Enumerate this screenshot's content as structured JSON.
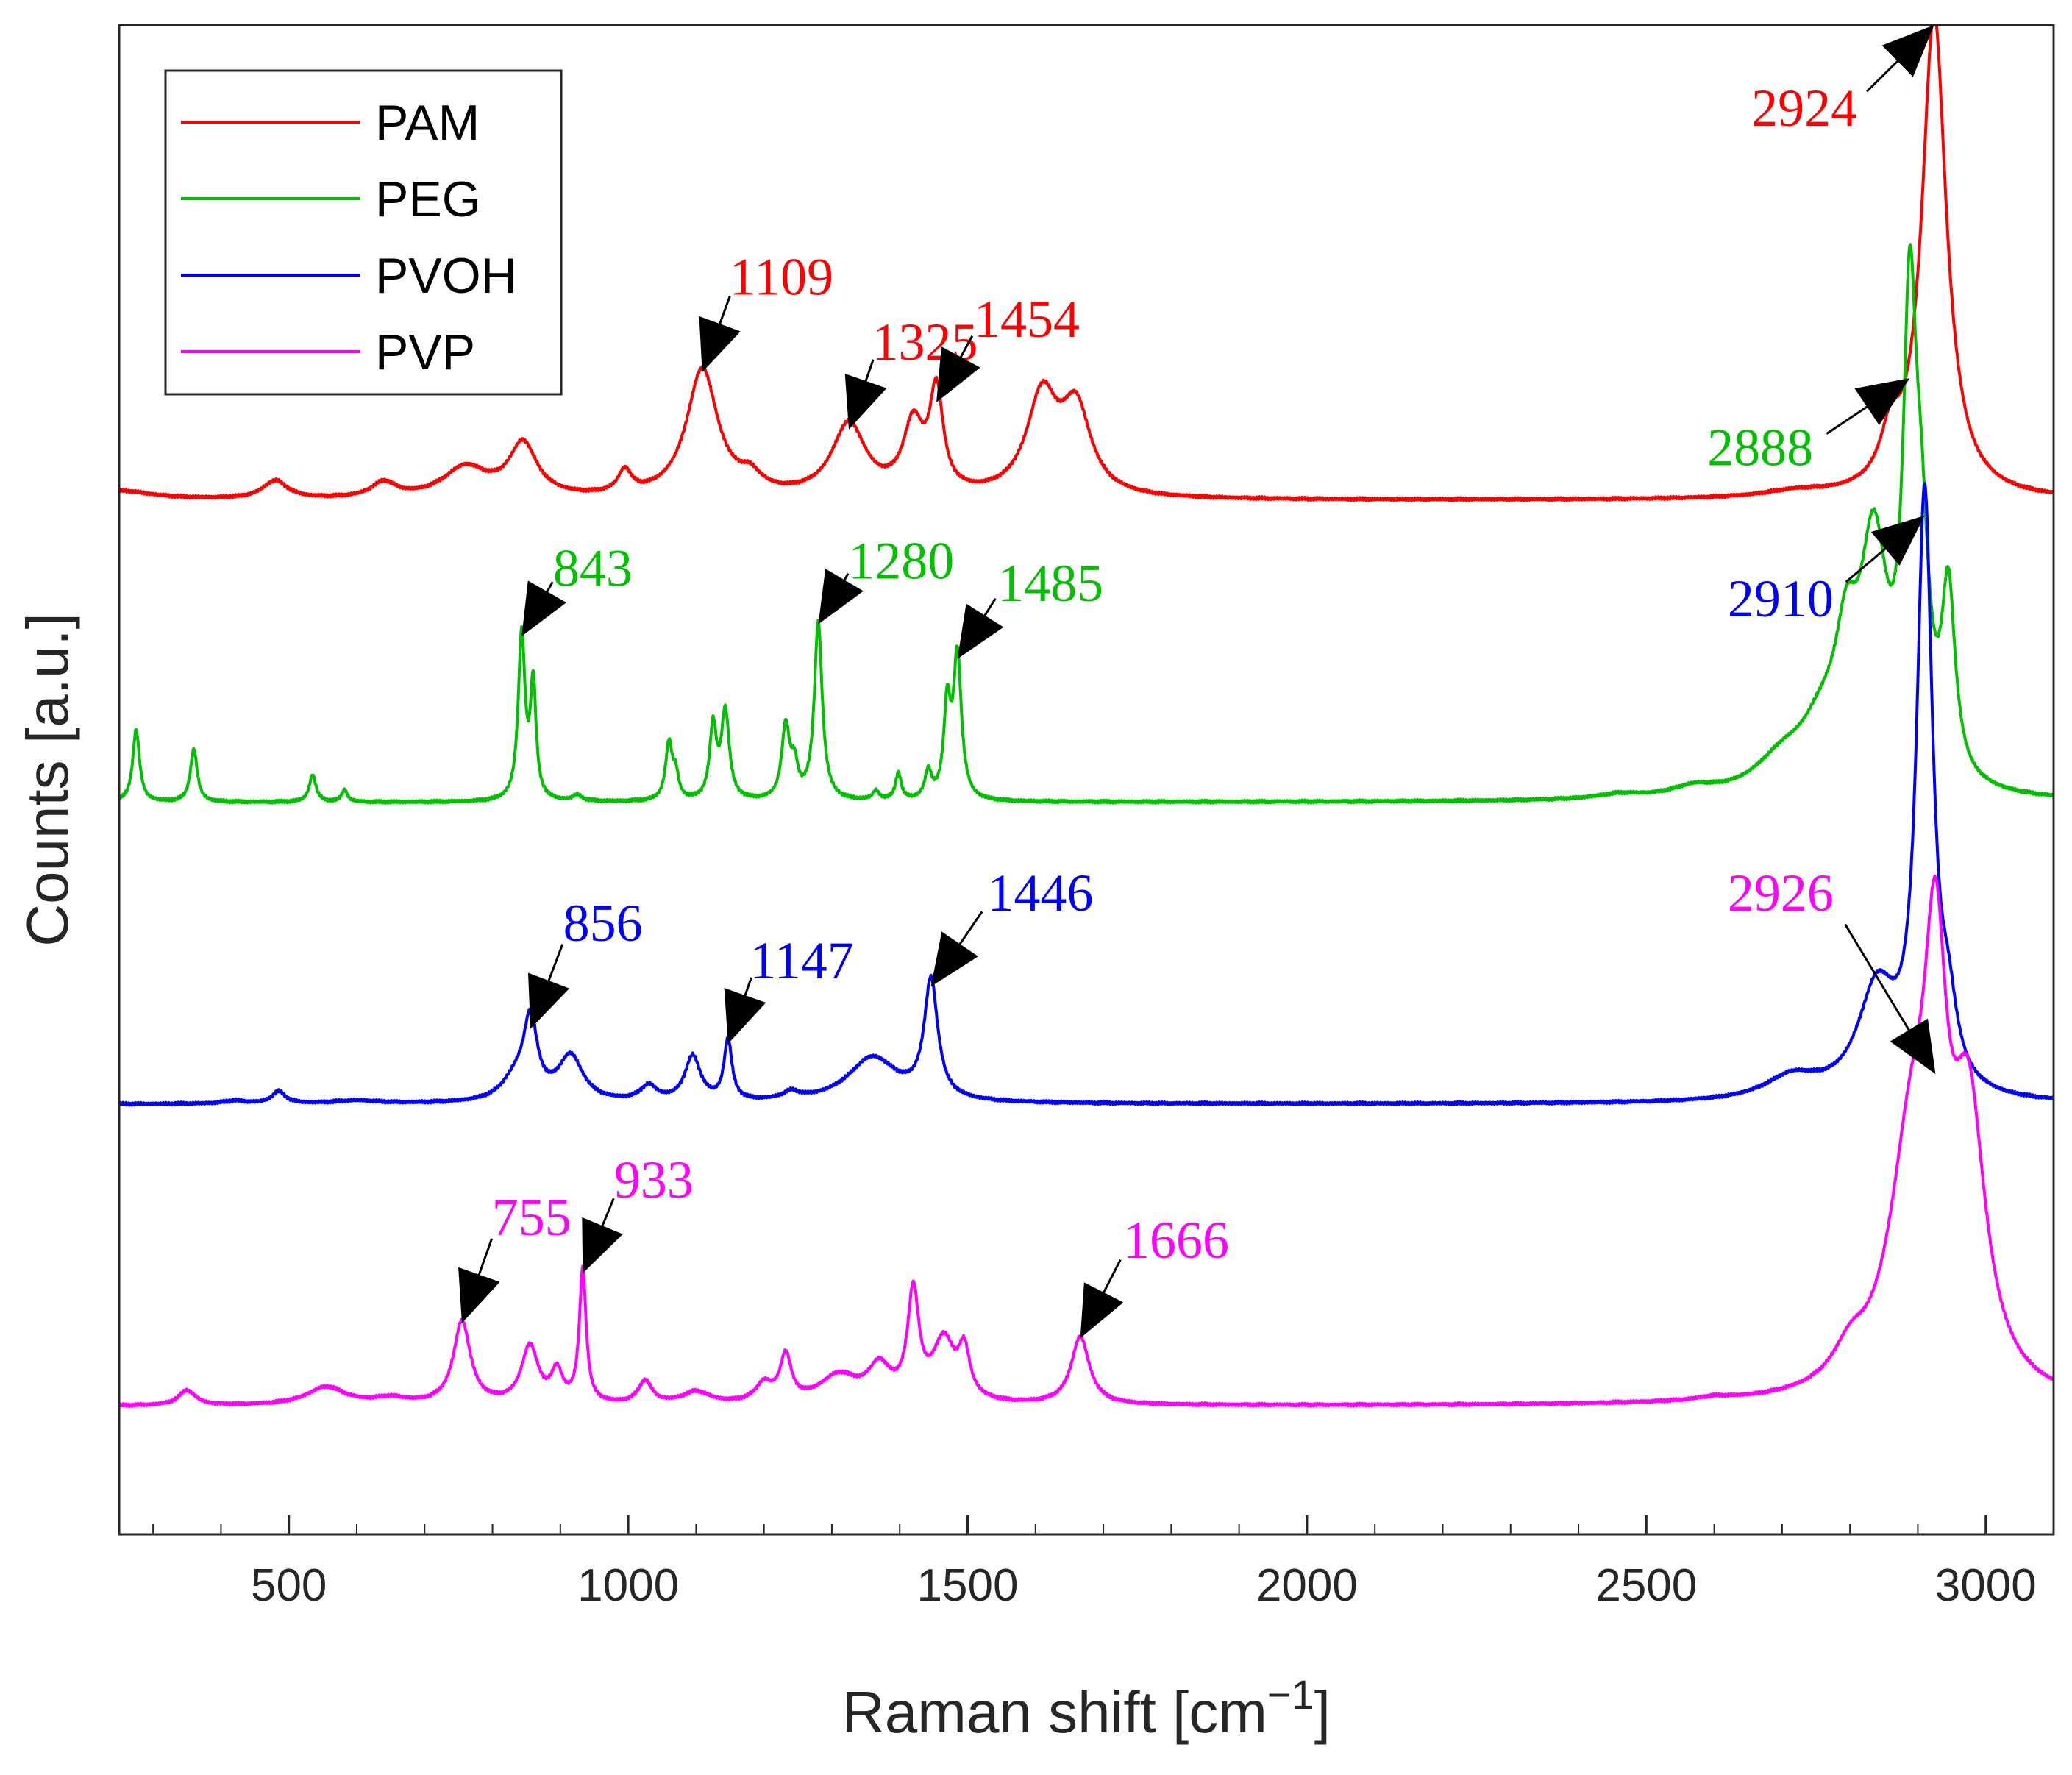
{
  "chart_data": {
    "type": "line",
    "xlabel": "Raman shift [cm",
    "xlabel_sup": "−1",
    "xlabel_close": "]",
    "ylabel": "Counts [a.u.]",
    "xlim": [
      250,
      3100
    ],
    "ylim": [
      0,
      10
    ],
    "x_ticks": [
      500,
      1000,
      1500,
      2000,
      2500,
      3000
    ],
    "x_tick_labels": [
      "500",
      "1000",
      "1500",
      "2000",
      "2500",
      "3000"
    ],
    "y_ticks_visible": false,
    "legend_position": "top-left",
    "series": [
      {
        "name": "PAM",
        "color": "#ff0000",
        "baseline": 6.85,
        "peaks": [
          [
            250,
            0.06,
            60
          ],
          [
            480,
            0.12,
            22
          ],
          [
            640,
            0.1,
            22
          ],
          [
            760,
            0.2,
            40
          ],
          [
            845,
            0.35,
            25
          ],
          [
            995,
            0.15,
            12
          ],
          [
            1109,
            0.85,
            28
          ],
          [
            1180,
            0.1,
            20
          ],
          [
            1325,
            0.48,
            30
          ],
          [
            1420,
            0.45,
            18
          ],
          [
            1454,
            0.65,
            12
          ],
          [
            1610,
            0.65,
            28
          ],
          [
            1660,
            0.55,
            26
          ],
          [
            2720,
            0.04,
            60
          ],
          [
            2860,
            0.3,
            18
          ],
          [
            2924,
            3.2,
            22
          ]
        ]
      },
      {
        "name": "PEG",
        "color": "#00c000",
        "baseline": 4.85,
        "peaks": [
          [
            275,
            0.48,
            6
          ],
          [
            360,
            0.35,
            6
          ],
          [
            535,
            0.18,
            6
          ],
          [
            582,
            0.08,
            5
          ],
          [
            843,
            1.1,
            6
          ],
          [
            860,
            0.75,
            5
          ],
          [
            925,
            0.04,
            8
          ],
          [
            1060,
            0.38,
            6
          ],
          [
            1070,
            0.15,
            5
          ],
          [
            1125,
            0.48,
            6
          ],
          [
            1143,
            0.58,
            7
          ],
          [
            1232,
            0.48,
            7
          ],
          [
            1245,
            0.2,
            6
          ],
          [
            1280,
            1.18,
            7
          ],
          [
            1365,
            0.06,
            6
          ],
          [
            1398,
            0.18,
            5
          ],
          [
            1442,
            0.18,
            6
          ],
          [
            1470,
            0.6,
            6
          ],
          [
            1485,
            0.95,
            7
          ],
          [
            2460,
            0.03,
            40
          ],
          [
            2570,
            0.06,
            40
          ],
          [
            2700,
            0.2,
            50
          ],
          [
            2760,
            0.35,
            40
          ],
          [
            2795,
            0.7,
            20
          ],
          [
            2835,
            1.5,
            25
          ],
          [
            2888,
            2.8,
            12
          ],
          [
            2905,
            1.2,
            14
          ],
          [
            2945,
            1.2,
            12
          ]
        ]
      },
      {
        "name": "PVOH",
        "color": "#0000ff",
        "baseline": 2.85,
        "peaks": [
          [
            420,
            0.02,
            20
          ],
          [
            485,
            0.08,
            12
          ],
          [
            600,
            0.02,
            40
          ],
          [
            835,
            0.15,
            25
          ],
          [
            856,
            0.5,
            12
          ],
          [
            915,
            0.3,
            22
          ],
          [
            1030,
            0.1,
            15
          ],
          [
            1095,
            0.3,
            14
          ],
          [
            1147,
            0.4,
            7
          ],
          [
            1240,
            0.05,
            15
          ],
          [
            1360,
            0.3,
            45
          ],
          [
            1446,
            0.78,
            12
          ],
          [
            2715,
            0.15,
            50
          ],
          [
            2840,
            0.7,
            35
          ],
          [
            2910,
            3.9,
            14
          ],
          [
            2945,
            0.4,
            15
          ]
        ]
      },
      {
        "name": "PVP",
        "color": "#ff00ff",
        "baseline": 0.85,
        "peaks": [
          [
            350,
            0.1,
            15
          ],
          [
            555,
            0.12,
            35
          ],
          [
            650,
            0.04,
            30
          ],
          [
            755,
            0.55,
            15
          ],
          [
            855,
            0.38,
            15
          ],
          [
            895,
            0.2,
            10
          ],
          [
            933,
            0.88,
            6
          ],
          [
            1025,
            0.15,
            12
          ],
          [
            1100,
            0.08,
            25
          ],
          [
            1200,
            0.12,
            15
          ],
          [
            1232,
            0.3,
            10
          ],
          [
            1310,
            0.18,
            35
          ],
          [
            1370,
            0.22,
            20
          ],
          [
            1420,
            0.7,
            10
          ],
          [
            1465,
            0.4,
            20
          ],
          [
            1495,
            0.3,
            10
          ],
          [
            1666,
            0.45,
            16
          ],
          [
            2600,
            0.02,
            30
          ],
          [
            2800,
            0.2,
            30
          ],
          [
            2890,
            1.5,
            40
          ],
          [
            2926,
            2.2,
            20
          ],
          [
            2975,
            1.7,
            30
          ]
        ]
      }
    ],
    "annotations": [
      {
        "text": "2924",
        "series": "PAM",
        "tip": [
          2924,
          10.0
        ],
        "label": [
          2800,
          9.45
        ],
        "color": "#ff0000"
      },
      {
        "text": "1109",
        "series": "PAM",
        "tip": [
          1109,
          7.7
        ],
        "label": [
          1160,
          8.33
        ],
        "color": "#ff0000"
      },
      {
        "text": "1325",
        "series": "PAM",
        "tip": [
          1325,
          7.32
        ],
        "label": [
          1370,
          7.9
        ],
        "color": "#ff0000"
      },
      {
        "text": "1454",
        "series": "PAM",
        "tip": [
          1454,
          7.5
        ],
        "label": [
          1520,
          8.05
        ],
        "color": "#ff0000"
      },
      {
        "text": "2888",
        "series": "PEG",
        "tip": [
          2888,
          7.66
        ],
        "label": [
          2735,
          7.2
        ],
        "color": "#00c000"
      },
      {
        "text": "843",
        "series": "PEG",
        "tip": [
          843,
          5.95
        ],
        "label": [
          900,
          6.4
        ],
        "color": "#00c000"
      },
      {
        "text": "1280",
        "series": "PEG",
        "tip": [
          1280,
          6.03
        ],
        "label": [
          1335,
          6.45
        ],
        "color": "#00c000"
      },
      {
        "text": "1485",
        "series": "PEG",
        "tip": [
          1485,
          5.8
        ],
        "label": [
          1555,
          6.3
        ],
        "color": "#00c000"
      },
      {
        "text": "2910",
        "series": "PVOH",
        "tip": [
          2910,
          6.75
        ],
        "label": [
          2765,
          6.2
        ],
        "color": "#0000ff"
      },
      {
        "text": "856",
        "series": "PVOH",
        "tip": [
          856,
          3.35
        ],
        "label": [
          915,
          4.05
        ],
        "color": "#0000ff"
      },
      {
        "text": "1147",
        "series": "PVOH",
        "tip": [
          1147,
          3.25
        ],
        "label": [
          1190,
          3.8
        ],
        "color": "#0000ff"
      },
      {
        "text": "1446",
        "series": "PVOH",
        "tip": [
          1446,
          3.63
        ],
        "label": [
          1540,
          4.25
        ],
        "color": "#0000ff"
      },
      {
        "text": "2926",
        "series": "PVP",
        "tip": [
          2926,
          3.05
        ],
        "label": [
          2765,
          4.25
        ],
        "color": "#ff00ff"
      },
      {
        "text": "755",
        "series": "PVP",
        "tip": [
          755,
          1.4
        ],
        "label": [
          810,
          2.1
        ],
        "color": "#ff00ff"
      },
      {
        "text": "933",
        "series": "PVP",
        "tip": [
          933,
          1.73
        ],
        "label": [
          990,
          2.35
        ],
        "color": "#ff00ff"
      },
      {
        "text": "1666",
        "series": "PVP",
        "tip": [
          1666,
          1.3
        ],
        "label": [
          1740,
          1.95
        ],
        "color": "#ff00ff"
      }
    ]
  }
}
